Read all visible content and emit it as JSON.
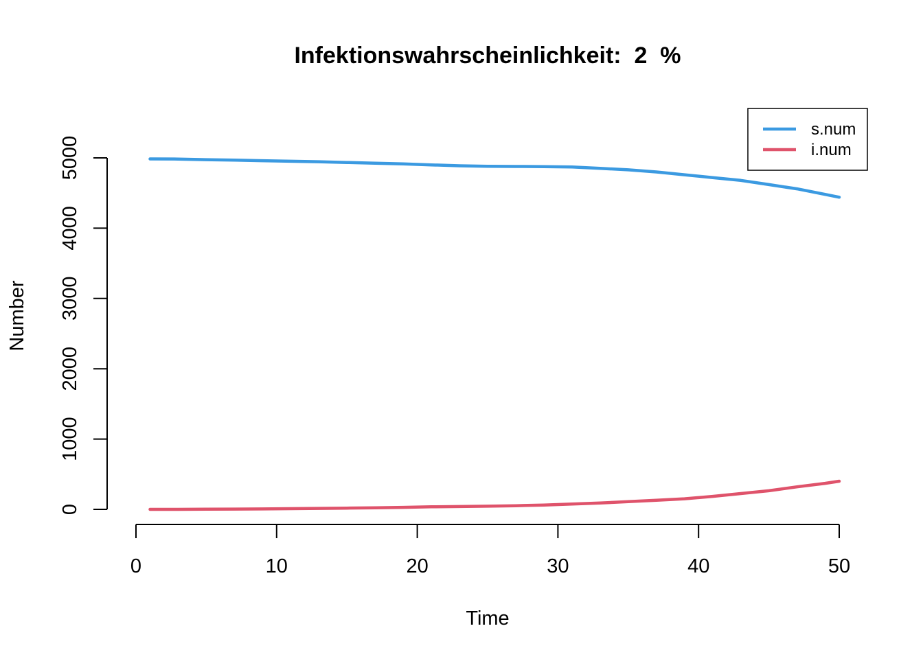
{
  "chart_data": {
    "type": "line",
    "title": "Infektionswahrscheinlichkeit:  2  %",
    "xlabel": "Time",
    "ylabel": "Number",
    "xlim": [
      1,
      50
    ],
    "ylim": [
      0,
      5000
    ],
    "xticks": [
      0,
      10,
      20,
      30,
      40,
      50
    ],
    "yticks": [
      0,
      1000,
      2000,
      3000,
      4000,
      5000
    ],
    "grid": false,
    "legend": {
      "position": "top-right"
    },
    "x": [
      1,
      3,
      5,
      7,
      9,
      11,
      13,
      15,
      17,
      19,
      21,
      23,
      25,
      27,
      29,
      31,
      33,
      35,
      37,
      39,
      41,
      43,
      45,
      47,
      49,
      50
    ],
    "series": [
      {
        "name": "s.num",
        "color": "#3B9AE1",
        "values": [
          4985,
          4983,
          4975,
          4968,
          4960,
          4952,
          4945,
          4935,
          4925,
          4915,
          4900,
          4888,
          4880,
          4878,
          4876,
          4870,
          4852,
          4830,
          4800,
          4760,
          4720,
          4680,
          4620,
          4560,
          4480,
          4440
        ]
      },
      {
        "name": "i.num",
        "color": "#DF536B",
        "values": [
          0,
          0,
          2,
          4,
          6,
          10,
          14,
          18,
          22,
          28,
          36,
          40,
          45,
          52,
          62,
          75,
          90,
          110,
          130,
          150,
          185,
          225,
          265,
          320,
          370,
          400
        ]
      }
    ]
  }
}
